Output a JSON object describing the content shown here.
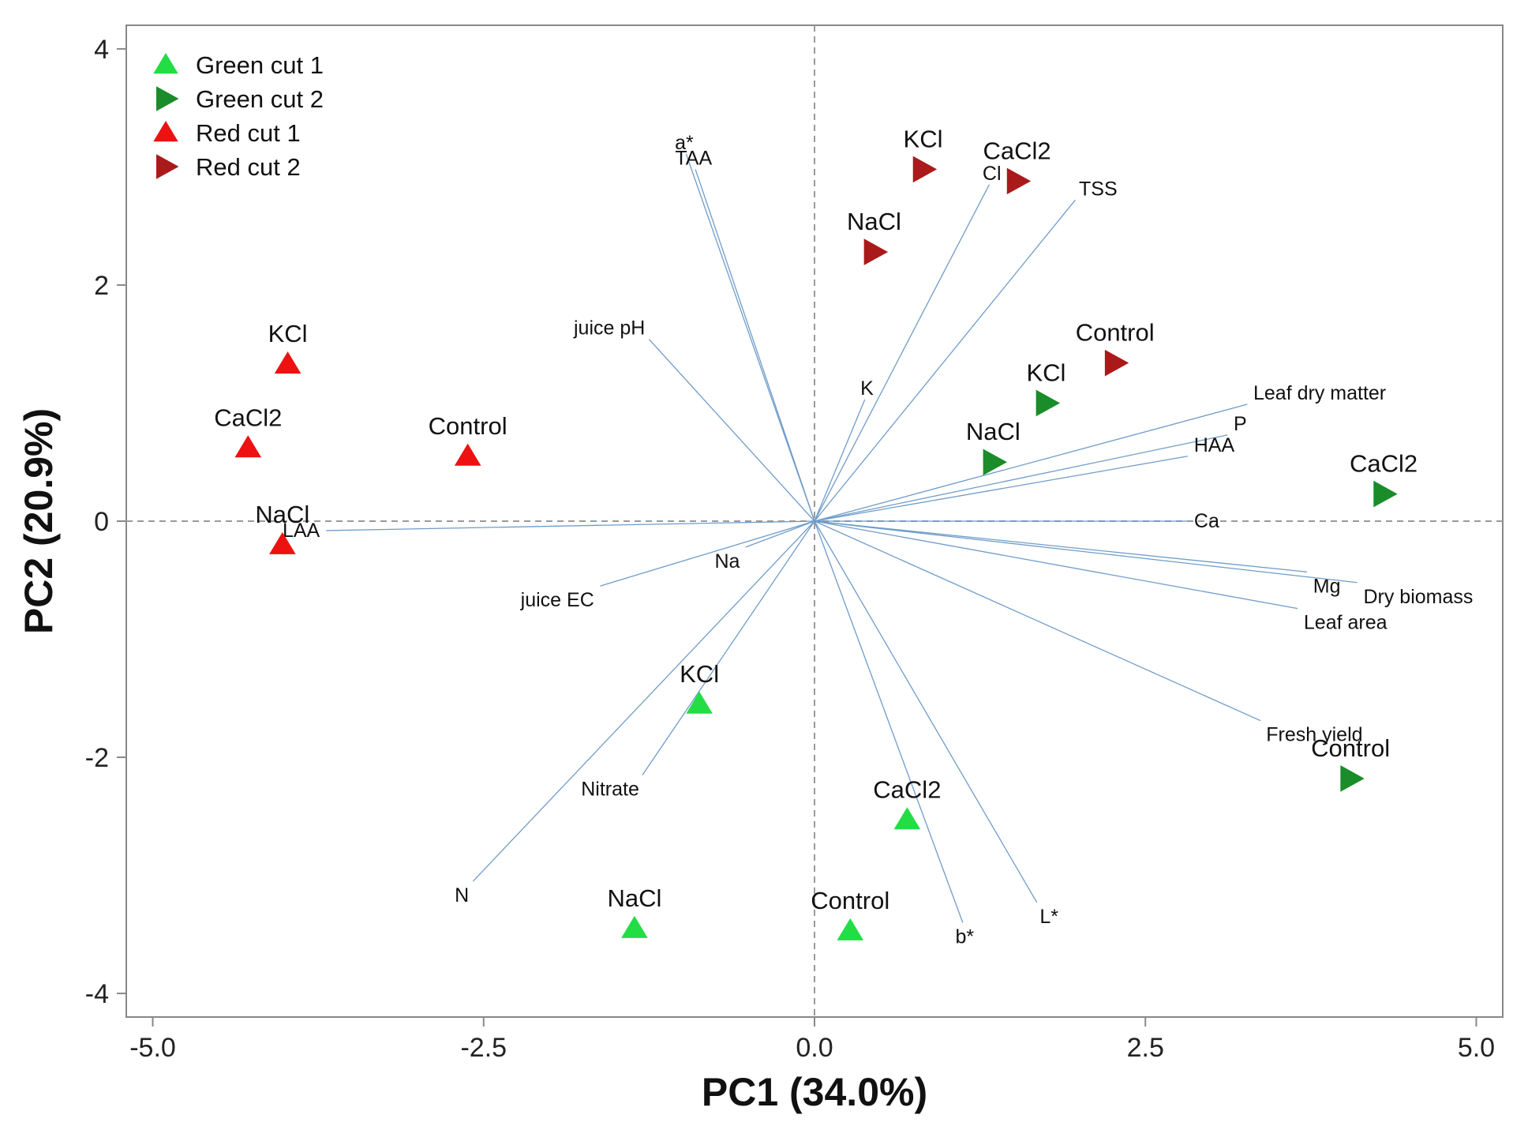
{
  "chart_data": {
    "type": "scatter",
    "subtype": "pca-biplot",
    "xlabel": "PC1 (34.0%)",
    "ylabel": "PC2 (20.9%)",
    "xlim": [
      -5.2,
      5.2
    ],
    "ylim": [
      -4.2,
      4.2
    ],
    "xticks": [
      -5.0,
      -2.5,
      0.0,
      2.5,
      5.0
    ],
    "xtick_labels": [
      "-5.0",
      "-2.5",
      "0.0",
      "2.5",
      "5.0"
    ],
    "yticks": [
      -4,
      -2,
      0,
      2,
      4
    ],
    "ytick_labels": [
      "-4",
      "-2",
      "0",
      "2",
      "4"
    ],
    "reference_lines": {
      "x": 0,
      "y": 0,
      "style": "dashed"
    },
    "legend_position": "top-left",
    "series": [
      {
        "name": "Green cut 1",
        "marker": "triangle-up",
        "color": "#22dd44",
        "points": [
          {
            "label": "KCl",
            "x": -0.87,
            "y": -1.55
          },
          {
            "label": "CaCl2",
            "x": 0.7,
            "y": -2.53
          },
          {
            "label": "NaCl",
            "x": -1.36,
            "y": -3.45
          },
          {
            "label": "Control",
            "x": 0.27,
            "y": -3.47
          }
        ]
      },
      {
        "name": "Green cut 2",
        "marker": "triangle-right",
        "color": "#1a8c2a",
        "points": [
          {
            "label": "KCl",
            "x": 1.75,
            "y": 1.0
          },
          {
            "label": "NaCl",
            "x": 1.35,
            "y": 0.5
          },
          {
            "label": "CaCl2",
            "x": 4.3,
            "y": 0.23
          },
          {
            "label": "Control",
            "x": 4.05,
            "y": -2.18
          }
        ]
      },
      {
        "name": "Red cut 1",
        "marker": "triangle-up",
        "color": "#ee1111",
        "points": [
          {
            "label": "KCl",
            "x": -3.98,
            "y": 1.33
          },
          {
            "label": "CaCl2",
            "x": -4.28,
            "y": 0.62
          },
          {
            "label": "Control",
            "x": -2.62,
            "y": 0.55
          },
          {
            "label": "NaCl",
            "x": -4.02,
            "y": -0.2
          }
        ]
      },
      {
        "name": "Red cut 2",
        "marker": "triangle-right",
        "color": "#aa1a1a",
        "points": [
          {
            "label": "KCl",
            "x": 0.82,
            "y": 2.98
          },
          {
            "label": "CaCl2",
            "x": 1.53,
            "y": 2.88
          },
          {
            "label": "NaCl",
            "x": 0.45,
            "y": 2.28
          },
          {
            "label": "Control",
            "x": 2.27,
            "y": 1.34
          }
        ]
      }
    ],
    "loadings": [
      {
        "label": "a*",
        "x": -0.97,
        "y": 3.11
      },
      {
        "label": "TAA",
        "x": -0.9,
        "y": 2.98
      },
      {
        "label": "juice pH",
        "x": -1.25,
        "y": 1.54
      },
      {
        "label": "K",
        "x": 0.38,
        "y": 1.03
      },
      {
        "label": "Cl",
        "x": 1.32,
        "y": 2.85
      },
      {
        "label": "TSS",
        "x": 1.97,
        "y": 2.72
      },
      {
        "label": "Leaf dry matter",
        "x": 3.27,
        "y": 0.99
      },
      {
        "label": "P",
        "x": 3.12,
        "y": 0.73
      },
      {
        "label": "HAA",
        "x": 2.82,
        "y": 0.55
      },
      {
        "label": "Ca",
        "x": 2.82,
        "y": 0.0
      },
      {
        "label": "Mg",
        "x": 3.72,
        "y": -0.43
      },
      {
        "label": "Dry biomass",
        "x": 4.1,
        "y": -0.52
      },
      {
        "label": "Leaf area",
        "x": 3.65,
        "y": -0.74
      },
      {
        "label": "Fresh yield",
        "x": 3.37,
        "y": -1.69
      },
      {
        "label": "LAA",
        "x": -3.69,
        "y": -0.08
      },
      {
        "label": "Na",
        "x": -0.52,
        "y": -0.22
      },
      {
        "label": "juice EC",
        "x": -1.62,
        "y": -0.55
      },
      {
        "label": "Nitrate",
        "x": -1.3,
        "y": -2.15
      },
      {
        "label": "N",
        "x": -2.58,
        "y": -3.05
      },
      {
        "label": "b*",
        "x": 1.12,
        "y": -3.4
      },
      {
        "label": "L*",
        "x": 1.68,
        "y": -3.23
      }
    ]
  },
  "colors": {
    "vector": "#6f9cc9",
    "axis": "#888888",
    "refline": "#9a9a9a"
  }
}
